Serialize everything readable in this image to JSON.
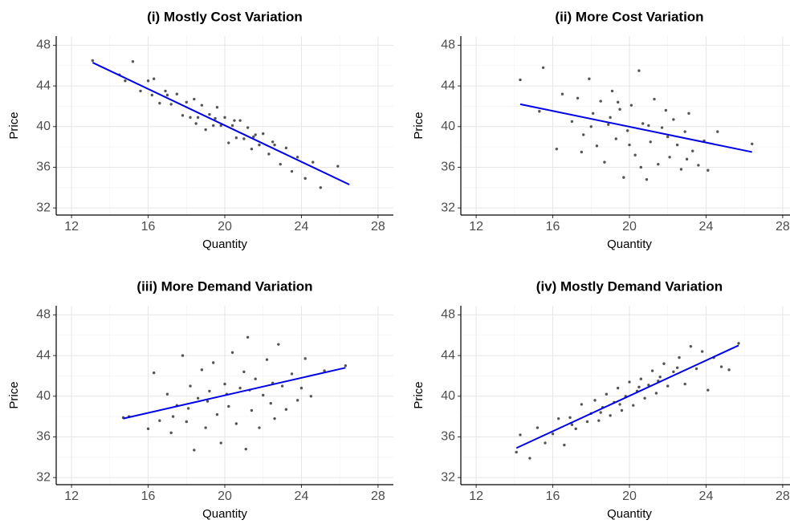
{
  "chart_data": [
    {
      "type": "scatter",
      "title": "(i)  Mostly Cost Variation",
      "xlabel": "Quantity",
      "ylabel": "Price",
      "x": [
        13.1,
        14.5,
        14.8,
        15.2,
        15.6,
        16.0,
        16.3,
        16.6,
        16.9,
        17.2,
        17.5,
        17.8,
        18.0,
        18.2,
        18.4,
        18.6,
        18.8,
        19.0,
        19.2,
        19.4,
        19.6,
        19.8,
        20.0,
        20.2,
        20.4,
        20.6,
        20.8,
        21.0,
        21.2,
        21.4,
        21.6,
        21.8,
        22.0,
        22.3,
        22.6,
        22.9,
        23.2,
        23.5,
        23.8,
        24.2,
        24.6,
        25.0,
        25.9,
        17.0,
        18.5,
        19.5,
        20.5,
        21.5,
        22.5,
        16.2
      ],
      "y": [
        46.5,
        45.1,
        44.5,
        46.4,
        43.5,
        44.5,
        44.7,
        42.3,
        43.5,
        42.2,
        43.2,
        41.1,
        42.4,
        40.9,
        42.7,
        40.9,
        42.1,
        39.7,
        41.2,
        40.1,
        41.9,
        40.1,
        40.9,
        38.4,
        40.1,
        38.9,
        40.6,
        38.8,
        39.9,
        37.8,
        39.2,
        38.2,
        39.3,
        37.3,
        38.2,
        36.3,
        37.9,
        35.6,
        37.0,
        34.9,
        36.5,
        34.0,
        36.1,
        43.1,
        40.3,
        40.8,
        40.6,
        39.0,
        38.5,
        43.1
      ],
      "point_color": "#555555",
      "fit": {
        "x": [
          13.1,
          26.5
        ],
        "y": [
          46.3,
          34.3
        ],
        "color": "#0000e6"
      },
      "xlim": [
        11.2,
        28.8
      ],
      "ylim": [
        31.3,
        48.9
      ],
      "xticks": [
        12,
        16,
        20,
        24,
        28
      ],
      "yticks": [
        32,
        36,
        40,
        44,
        48
      ],
      "grid": true
    },
    {
      "type": "scatter",
      "title": "(ii)  More Cost Variation",
      "xlabel": "Quantity",
      "ylabel": "Price",
      "x": [
        14.3,
        15.5,
        15.3,
        16.2,
        16.5,
        17.0,
        17.3,
        17.6,
        17.9,
        18.1,
        18.3,
        18.5,
        18.7,
        18.9,
        19.1,
        19.3,
        19.5,
        19.7,
        19.9,
        20.1,
        20.3,
        20.5,
        20.7,
        20.9,
        21.1,
        21.3,
        21.5,
        21.7,
        21.9,
        22.1,
        22.3,
        22.5,
        22.7,
        22.9,
        23.1,
        23.3,
        23.6,
        23.9,
        24.1,
        24.6,
        26.4,
        19.0,
        20.0,
        21.0,
        22.0,
        18.0,
        17.5,
        23.0,
        20.6,
        19.4
      ],
      "y": [
        44.6,
        45.8,
        41.5,
        37.8,
        43.2,
        40.5,
        42.8,
        39.2,
        44.7,
        41.3,
        38.1,
        42.5,
        36.5,
        40.2,
        43.5,
        38.8,
        41.7,
        35.0,
        39.6,
        42.1,
        37.2,
        45.5,
        40.3,
        34.8,
        38.5,
        42.7,
        36.3,
        39.9,
        41.6,
        37.0,
        40.7,
        38.2,
        35.8,
        39.5,
        41.3,
        37.6,
        36.2,
        38.6,
        35.7,
        39.5,
        38.3,
        40.9,
        38.2,
        40.1,
        39.0,
        40.0,
        37.5,
        36.8,
        36.0,
        42.4
      ],
      "point_color": "#555555",
      "fit": {
        "x": [
          14.3,
          26.4
        ],
        "y": [
          42.2,
          37.5
        ],
        "color": "#0000e6"
      },
      "xlim": [
        11.2,
        28.8
      ],
      "ylim": [
        31.3,
        48.9
      ],
      "xticks": [
        12,
        16,
        20,
        24,
        28
      ],
      "yticks": [
        32,
        36,
        40,
        44,
        48
      ],
      "grid": true
    },
    {
      "type": "scatter",
      "title": "(iii)  More Demand Variation",
      "xlabel": "Quantity",
      "ylabel": "Price",
      "x": [
        14.7,
        15.0,
        16.0,
        16.3,
        16.6,
        17.0,
        17.2,
        17.5,
        17.8,
        18.0,
        18.2,
        18.4,
        18.6,
        18.8,
        19.0,
        19.2,
        19.4,
        19.6,
        19.8,
        20.0,
        20.2,
        20.4,
        20.6,
        20.8,
        21.0,
        21.1,
        21.2,
        21.4,
        21.6,
        21.8,
        22.0,
        22.2,
        22.4,
        22.6,
        22.8,
        23.0,
        23.2,
        23.5,
        23.8,
        24.0,
        24.2,
        24.5,
        25.2,
        26.3,
        19.1,
        20.1,
        21.3,
        18.1,
        22.5,
        17.3
      ],
      "y": [
        37.9,
        38.0,
        36.8,
        42.3,
        37.6,
        40.2,
        36.4,
        39.1,
        44.0,
        37.5,
        41.0,
        34.7,
        39.8,
        42.6,
        36.9,
        40.5,
        43.3,
        38.2,
        35.4,
        41.2,
        39.0,
        44.3,
        37.3,
        40.8,
        42.4,
        34.8,
        45.8,
        38.6,
        41.7,
        36.9,
        40.1,
        43.6,
        39.3,
        37.8,
        45.1,
        41.0,
        38.7,
        42.2,
        39.6,
        40.8,
        43.7,
        40.0,
        42.5,
        43.0,
        39.5,
        40.2,
        40.6,
        38.8,
        41.3,
        38.0
      ],
      "point_color": "#555555",
      "fit": {
        "x": [
          14.7,
          26.3
        ],
        "y": [
          37.8,
          42.8
        ],
        "color": "#0000e6"
      },
      "xlim": [
        11.2,
        28.8
      ],
      "ylim": [
        31.3,
        48.9
      ],
      "xticks": [
        12,
        16,
        20,
        24,
        28
      ],
      "yticks": [
        32,
        36,
        40,
        44,
        48
      ],
      "grid": true
    },
    {
      "type": "scatter",
      "title": "(iv)  Mostly Demand Variation",
      "xlabel": "Quantity",
      "ylabel": "Price",
      "x": [
        14.1,
        14.3,
        14.8,
        15.2,
        15.6,
        16.0,
        16.3,
        16.6,
        16.9,
        17.2,
        17.5,
        17.8,
        18.0,
        18.2,
        18.4,
        18.6,
        18.8,
        19.0,
        19.2,
        19.4,
        19.6,
        19.8,
        20.0,
        20.2,
        20.4,
        20.6,
        20.8,
        21.0,
        21.2,
        21.4,
        21.6,
        21.8,
        22.0,
        22.3,
        22.6,
        22.9,
        23.2,
        23.5,
        23.8,
        24.1,
        24.4,
        24.8,
        25.2,
        25.7,
        19.5,
        20.5,
        21.5,
        18.5,
        22.5,
        17.0
      ],
      "y": [
        34.5,
        36.2,
        33.9,
        36.9,
        35.4,
        36.3,
        37.8,
        35.2,
        37.9,
        36.8,
        39.2,
        37.5,
        38.3,
        39.6,
        37.6,
        38.9,
        40.2,
        38.1,
        39.4,
        40.8,
        38.6,
        40.0,
        41.4,
        39.1,
        40.5,
        41.7,
        39.8,
        41.1,
        42.5,
        40.3,
        41.9,
        43.2,
        41.0,
        42.4,
        43.8,
        41.2,
        44.9,
        42.7,
        44.4,
        40.6,
        43.8,
        42.9,
        42.6,
        45.2,
        39.2,
        40.9,
        41.5,
        38.4,
        42.8,
        37.2
      ],
      "point_color": "#555555",
      "fit": {
        "x": [
          14.1,
          25.7
        ],
        "y": [
          34.9,
          45.0
        ],
        "color": "#0000e6"
      },
      "xlim": [
        11.2,
        28.8
      ],
      "ylim": [
        31.3,
        48.9
      ],
      "xticks": [
        12,
        16,
        20,
        24,
        28
      ],
      "yticks": [
        32,
        36,
        40,
        44,
        48
      ],
      "grid": true
    }
  ]
}
